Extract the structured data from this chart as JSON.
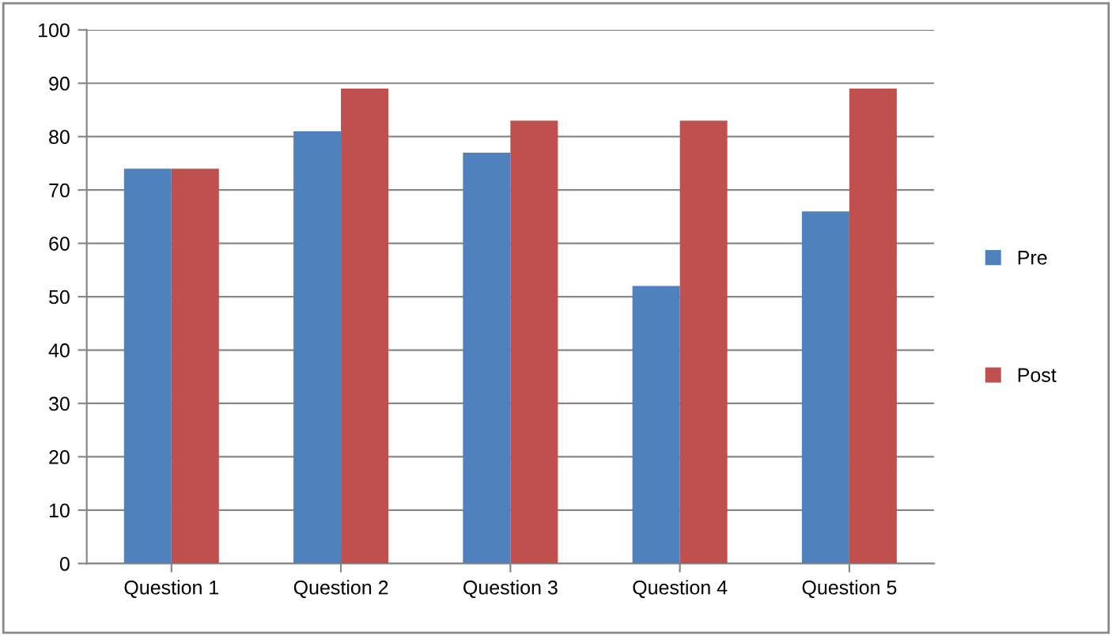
{
  "chart_data": {
    "type": "bar",
    "categories": [
      "Question 1",
      "Question 2",
      "Question 3",
      "Question 4",
      "Question 5"
    ],
    "series": [
      {
        "name": "Pre",
        "color": "#4f81bd",
        "values": [
          74,
          81,
          77,
          52,
          66
        ]
      },
      {
        "name": "Post",
        "color": "#c0504d",
        "values": [
          74,
          89,
          83,
          83,
          89
        ]
      }
    ],
    "ylim": [
      0,
      100
    ],
    "yticks": [
      0,
      10,
      20,
      30,
      40,
      50,
      60,
      70,
      80,
      90,
      100
    ],
    "grid": "y",
    "legend": "right"
  }
}
